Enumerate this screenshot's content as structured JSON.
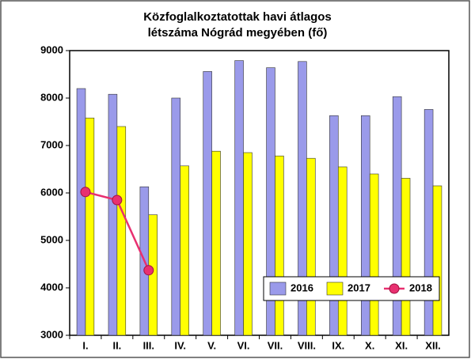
{
  "chart_data": {
    "type": "bar",
    "title": [
      "Közfoglalkoztatottak havi átlagos",
      "létszáma Nógrád megyében (fő)"
    ],
    "categories": [
      "I.",
      "II.",
      "III.",
      "IV.",
      "V.",
      "VI.",
      "VII.",
      "VIII.",
      "IX.",
      "X.",
      "XI.",
      "XII."
    ],
    "series": [
      {
        "name": "2016",
        "type": "bar",
        "color": "#9a9aea",
        "values": [
          8200,
          8080,
          6130,
          8000,
          8560,
          8790,
          8640,
          8770,
          7630,
          7630,
          8030,
          7760
        ]
      },
      {
        "name": "2017",
        "type": "bar",
        "color": "#ffff00",
        "values": [
          7580,
          7400,
          5540,
          6570,
          6880,
          6850,
          6780,
          6730,
          6550,
          6400,
          6310,
          6150
        ]
      },
      {
        "name": "2018",
        "type": "line",
        "color": "#e83070",
        "values": [
          6020,
          5850,
          4370,
          null,
          null,
          null,
          null,
          null,
          null,
          null,
          null,
          null
        ]
      }
    ],
    "ylim": [
      3000,
      9000
    ],
    "yticks": [
      3000,
      4000,
      5000,
      6000,
      7000,
      8000,
      9000
    ],
    "grid": false,
    "legend": "lower right"
  }
}
